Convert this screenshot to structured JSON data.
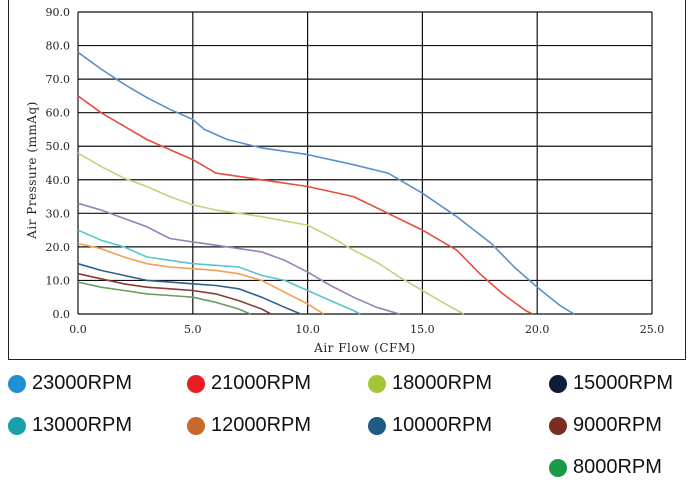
{
  "chart_data": {
    "type": "line",
    "title": "",
    "xlabel": "Air Flow (CFM)",
    "ylabel": "Air Pressure (mmAq)",
    "xlim": [
      0,
      25
    ],
    "ylim": [
      0,
      90
    ],
    "x_ticks": [
      "0.0",
      "5.0",
      "10.0",
      "15.0",
      "20.0",
      "25.0"
    ],
    "y_ticks": [
      "0.0",
      "10.0",
      "20.0",
      "30.0",
      "40.0",
      "50.0",
      "60.0",
      "70.0",
      "80.0",
      "90.0"
    ],
    "grid": true,
    "legend_position": "bottom",
    "series": [
      {
        "name": "23000RPM",
        "color": "#5b8fc9",
        "points": [
          [
            0,
            78
          ],
          [
            1,
            73
          ],
          [
            2,
            68.5
          ],
          [
            3,
            64.5
          ],
          [
            4,
            61
          ],
          [
            5,
            58
          ],
          [
            5.5,
            55
          ],
          [
            6.5,
            52
          ],
          [
            8,
            49.5
          ],
          [
            10,
            47.5
          ],
          [
            12,
            44.5
          ],
          [
            13.5,
            42
          ],
          [
            15,
            36
          ],
          [
            16.5,
            29
          ],
          [
            18,
            21
          ],
          [
            19,
            14
          ],
          [
            20,
            8
          ],
          [
            21,
            2.5
          ],
          [
            21.6,
            0
          ]
        ]
      },
      {
        "name": "21000RPM",
        "color": "#e74c3c",
        "points": [
          [
            0,
            65
          ],
          [
            1,
            60
          ],
          [
            2,
            56
          ],
          [
            3,
            52
          ],
          [
            4,
            49
          ],
          [
            5,
            46
          ],
          [
            6,
            42
          ],
          [
            8,
            40
          ],
          [
            10,
            38
          ],
          [
            12,
            35
          ],
          [
            13.5,
            30
          ],
          [
            15,
            25
          ],
          [
            16.5,
            19
          ],
          [
            17.5,
            12
          ],
          [
            18.5,
            6
          ],
          [
            19.5,
            1
          ],
          [
            19.8,
            0
          ]
        ]
      },
      {
        "name": "18000RPM",
        "color": "#bfd57a",
        "points": [
          [
            0,
            48
          ],
          [
            1,
            44
          ],
          [
            2,
            40.5
          ],
          [
            3,
            38
          ],
          [
            4,
            35
          ],
          [
            5,
            32.5
          ],
          [
            6,
            31
          ],
          [
            7,
            30
          ],
          [
            8,
            29
          ],
          [
            10,
            26.5
          ],
          [
            11,
            23
          ],
          [
            12,
            19
          ],
          [
            13,
            15.5
          ],
          [
            14,
            11
          ],
          [
            15,
            7
          ],
          [
            16,
            3
          ],
          [
            16.8,
            0
          ]
        ]
      },
      {
        "name": "15000RPM",
        "color": "#9a7fb5",
        "points": [
          [
            0,
            33
          ],
          [
            1,
            31
          ],
          [
            2,
            28.5
          ],
          [
            3,
            26
          ],
          [
            4,
            22.5
          ],
          [
            5,
            21.5
          ],
          [
            6,
            20.5
          ],
          [
            7,
            19.5
          ],
          [
            8,
            18.5
          ],
          [
            9,
            16
          ],
          [
            10,
            12.5
          ],
          [
            11,
            8.5
          ],
          [
            12,
            5
          ],
          [
            13,
            2
          ],
          [
            14,
            0
          ]
        ]
      },
      {
        "name": "13000RPM",
        "color": "#5bc4cf",
        "points": [
          [
            0,
            25
          ],
          [
            1,
            22
          ],
          [
            2,
            20
          ],
          [
            3,
            17
          ],
          [
            4,
            16
          ],
          [
            5,
            15
          ],
          [
            6,
            14.5
          ],
          [
            7,
            14
          ],
          [
            8,
            11.5
          ],
          [
            9,
            10
          ],
          [
            10,
            7
          ],
          [
            11,
            4
          ],
          [
            12,
            1
          ],
          [
            12.3,
            0
          ]
        ]
      },
      {
        "name": "12000RPM",
        "color": "#f0a050",
        "points": [
          [
            0,
            21
          ],
          [
            1,
            19.5
          ],
          [
            2,
            17
          ],
          [
            3,
            15
          ],
          [
            4,
            14
          ],
          [
            5,
            13.5
          ],
          [
            6,
            13
          ],
          [
            7,
            12
          ],
          [
            8,
            10
          ],
          [
            9,
            6.5
          ],
          [
            10,
            3
          ],
          [
            10.7,
            0
          ]
        ]
      },
      {
        "name": "10000RPM",
        "color": "#2e5f8f",
        "points": [
          [
            0,
            15
          ],
          [
            1,
            13
          ],
          [
            2,
            11.5
          ],
          [
            3,
            10
          ],
          [
            4,
            9.5
          ],
          [
            5,
            9
          ],
          [
            6,
            8.5
          ],
          [
            7,
            7.5
          ],
          [
            8,
            5
          ],
          [
            9,
            2
          ],
          [
            9.7,
            0
          ]
        ]
      },
      {
        "name": "9000RPM",
        "color": "#8b3a3a",
        "points": [
          [
            0,
            12
          ],
          [
            1,
            10.5
          ],
          [
            2,
            9
          ],
          [
            3,
            8
          ],
          [
            4,
            7.5
          ],
          [
            5,
            7
          ],
          [
            6,
            6
          ],
          [
            7,
            4
          ],
          [
            8,
            1.5
          ],
          [
            8.4,
            0
          ]
        ]
      },
      {
        "name": "8000RPM",
        "color": "#6b9e5f",
        "points": [
          [
            0,
            9.5
          ],
          [
            1,
            8
          ],
          [
            2,
            7
          ],
          [
            3,
            6
          ],
          [
            4,
            5.5
          ],
          [
            5,
            5
          ],
          [
            6,
            3.5
          ],
          [
            7,
            1.5
          ],
          [
            7.5,
            0
          ]
        ]
      }
    ]
  },
  "legend": [
    {
      "label": "23000RPM",
      "color": "#1f8fd6"
    },
    {
      "label": "21000RPM",
      "color": "#e81e25"
    },
    {
      "label": "18000RPM",
      "color": "#a6c63a"
    },
    {
      "label": "15000RPM",
      "color": "#101a3a"
    },
    {
      "label": "13000RPM",
      "color": "#1aa0a8"
    },
    {
      "label": "12000RPM",
      "color": "#c8682a"
    },
    {
      "label": "10000RPM",
      "color": "#1e5a82"
    },
    {
      "label": "9000RPM",
      "color": "#7a2e22"
    },
    {
      "label": "8000RPM",
      "color": "#1a9a48"
    }
  ]
}
